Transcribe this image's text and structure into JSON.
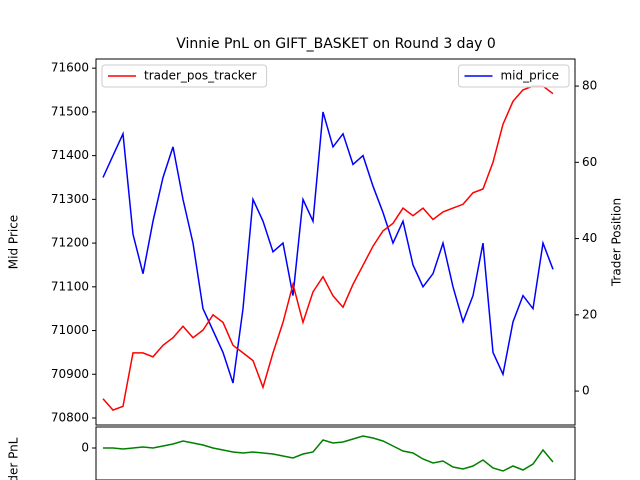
{
  "chart_data": [
    {
      "type": "line",
      "title": "Vinnie PnL on GIFT_BASKET on Round 3 day 0",
      "ylabel": "Mid Price",
      "y2label": "Trader Position",
      "x": [
        0,
        1,
        2,
        3,
        4,
        5,
        6,
        7,
        8,
        9,
        10,
        11,
        12,
        13,
        14,
        15,
        16,
        17,
        18,
        19,
        20,
        21,
        22,
        23,
        24,
        25,
        26,
        27,
        28,
        29,
        30,
        31,
        32,
        33,
        34,
        35,
        36,
        37,
        38,
        39,
        40,
        41,
        42,
        43,
        44,
        45
      ],
      "xlim": [
        -0.7,
        47.2
      ],
      "ylim": [
        70784,
        71621
      ],
      "yticks": [
        70800,
        70900,
        71000,
        71100,
        71200,
        71300,
        71400,
        71500,
        71600
      ],
      "y2lim": [
        -8.9,
        87.1
      ],
      "y2ticks": [
        0,
        20,
        40,
        60,
        80
      ],
      "series": [
        {
          "name": "mid_price",
          "color": "#0000ff",
          "axis": "y",
          "legend": "upper right",
          "values": [
            71350,
            71400,
            71450,
            71220,
            71130,
            71250,
            71350,
            71420,
            71300,
            71200,
            71050,
            71000,
            70950,
            70880,
            71050,
            71300,
            71250,
            71180,
            71200,
            71080,
            71300,
            71250,
            71500,
            71420,
            71450,
            71380,
            71400,
            71330,
            71270,
            71200,
            71250,
            71150,
            71100,
            71130,
            71200,
            71100,
            71020,
            71080,
            71200,
            70950,
            70900,
            71020,
            71080,
            71050,
            71200,
            71140
          ]
        },
        {
          "name": "trader_pos_tracker",
          "color": "#ff0000",
          "axis": "y2",
          "legend": "upper left",
          "values": [
            -2,
            -5,
            -4,
            10,
            10,
            9,
            12,
            14,
            17,
            14,
            16,
            20,
            18,
            12,
            10,
            8,
            1,
            10,
            18,
            28,
            18,
            26,
            30,
            25,
            22,
            28,
            33,
            38,
            42,
            44,
            48,
            46,
            48,
            45,
            47,
            48,
            49,
            52,
            53,
            60,
            70,
            76,
            79,
            80,
            80,
            78
          ]
        }
      ]
    },
    {
      "type": "line",
      "ylabel": "Trader PnL",
      "x": [
        0,
        1,
        2,
        3,
        4,
        5,
        6,
        7,
        8,
        9,
        10,
        11,
        12,
        13,
        14,
        15,
        16,
        17,
        18,
        19,
        20,
        21,
        22,
        23,
        24,
        25,
        26,
        27,
        28,
        29,
        30,
        31,
        32,
        33,
        34,
        35,
        36,
        37,
        38,
        39,
        40,
        41,
        42,
        43,
        44,
        45
      ],
      "xlim": [
        -0.7,
        47.2
      ],
      "ylim": [
        -3200,
        2100
      ],
      "yticks": [
        0
      ],
      "series": [
        {
          "color": "#008000",
          "values": [
            0,
            0,
            -100,
            0,
            100,
            0,
            200,
            400,
            700,
            500,
            300,
            0,
            -200,
            -400,
            -500,
            -400,
            -500,
            -600,
            -800,
            -1000,
            -600,
            -400,
            800,
            500,
            600,
            900,
            1200,
            1000,
            700,
            200,
            -300,
            -500,
            -1100,
            -1500,
            -1300,
            -1900,
            -2100,
            -1800,
            -1200,
            -2000,
            -2300,
            -1800,
            -2200,
            -1600,
            -200,
            -1400
          ]
        }
      ]
    }
  ]
}
